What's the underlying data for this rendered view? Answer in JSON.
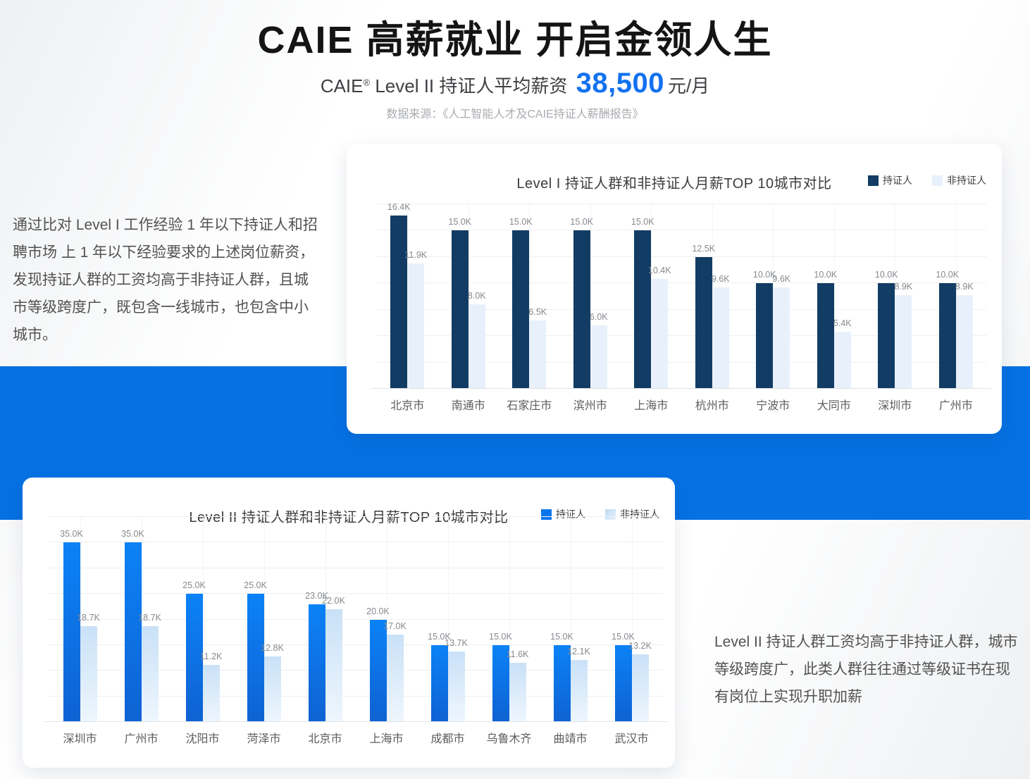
{
  "header": {
    "title": "CAIE 高薪就业  开启金领人生",
    "subtitle": {
      "brand": "CAIE",
      "reg": "®",
      "text": " Level II  持证人平均薪资 ",
      "salary": "38,500",
      "unit": "元/月"
    },
    "source": "数据来源：《人工智能人才及CAIE持证人薪酬报告》"
  },
  "notes": {
    "level1": "通过比对 Level I 工作经验 1 年以下持证人和招聘市场 上 1 年以下经验要求的上述岗位薪资，发现持证人群的工资均高于非持证人群，且城市等级跨度广，既包含一线城市，也包含中小城市。",
    "level2": "Level II 持证人群工资均高于非持证人群，城市等级跨度广，此类人群往往通过等级证书在现有岗位上实现升职加薪"
  },
  "colors": {
    "band_blue": "#0571e3",
    "salary_blue": "#1272ef",
    "chart1_certified": "#123c64",
    "chart1_noncertified": "#e8f1fb",
    "chart2_certified_top": "#0b82f7",
    "chart2_certified_bottom": "#0f62d2",
    "chart2_noncertified_top": "#c9e1f7",
    "chart2_noncertified_bottom": "#eef6fd"
  },
  "chart_data": [
    {
      "type": "bar",
      "title": "Level I 持证人群和非持证人月薪TOP 10城市对比",
      "legend": [
        "持证人",
        "非持证人"
      ],
      "legend_position": "top-right",
      "grid": true,
      "unit": "K",
      "ylim": [
        0,
        17.5
      ],
      "grid_step": 2.5,
      "categories": [
        "北京市",
        "南通市",
        "石家庄市",
        "滨州市",
        "上海市",
        "杭州市",
        "宁波市",
        "大同市",
        "深圳市",
        "广州市"
      ],
      "series": [
        {
          "name": "持证人",
          "values": [
            16.4,
            15.0,
            15.0,
            15.0,
            15.0,
            12.5,
            10.0,
            10.0,
            10.0,
            10.0
          ]
        },
        {
          "name": "非持证人",
          "values": [
            11.9,
            8.0,
            6.5,
            6.0,
            10.4,
            9.6,
            9.6,
            5.4,
            8.9,
            8.9
          ]
        }
      ]
    },
    {
      "type": "bar",
      "title": "Level II 持证人群和非持证人月薪TOP 10城市对比",
      "legend": [
        "持证人",
        "非持证人"
      ],
      "legend_position": "top-right",
      "grid": true,
      "unit": "K",
      "ylim": [
        0,
        40
      ],
      "grid_step": 5,
      "categories": [
        "深圳市",
        "广州市",
        "沈阳市",
        "菏泽市",
        "北京市",
        "上海市",
        "成都市",
        "乌鲁木齐",
        "曲靖市",
        "武汉市"
      ],
      "series": [
        {
          "name": "持证人",
          "values": [
            35.0,
            35.0,
            25.0,
            25.0,
            23.0,
            20.0,
            15.0,
            15.0,
            15.0,
            15.0
          ]
        },
        {
          "name": "非持证人",
          "values": [
            18.7,
            18.7,
            11.2,
            12.8,
            22.0,
            17.0,
            13.7,
            11.6,
            12.1,
            13.2
          ]
        }
      ]
    }
  ]
}
